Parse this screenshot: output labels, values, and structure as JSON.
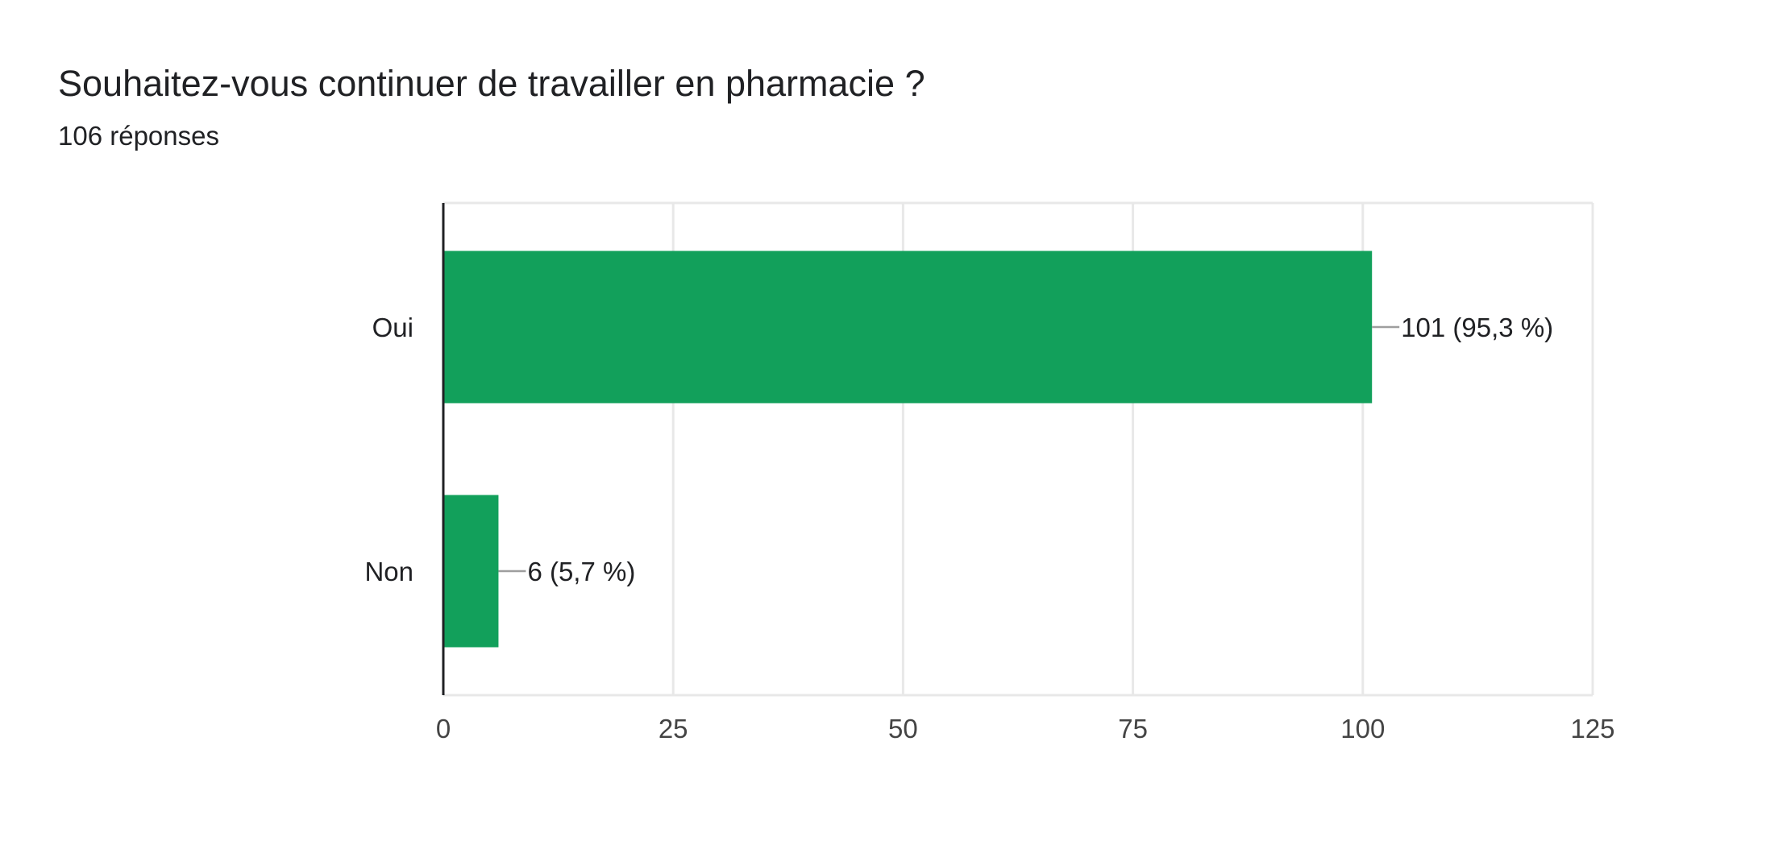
{
  "question": {
    "title": "Souhaitez-vous continuer de travailler en pharmacie ?",
    "responses_label": "106 réponses"
  },
  "colors": {
    "bar": "#12a05b",
    "grid": "#e8e8e8",
    "axis": "#202124",
    "leader": "#9e9e9e",
    "label_text": "#202124",
    "tick_text": "#444444"
  },
  "chart_data": {
    "type": "bar",
    "orientation": "horizontal",
    "categories": [
      "Oui",
      "Non"
    ],
    "values": [
      101,
      6
    ],
    "data_labels": [
      "101 (95,3 %)",
      "6 (5,7 %)"
    ],
    "xlim": [
      0,
      125
    ],
    "x_ticks": [
      0,
      25,
      50,
      75,
      100,
      125
    ],
    "grid": true,
    "legend": "none"
  }
}
